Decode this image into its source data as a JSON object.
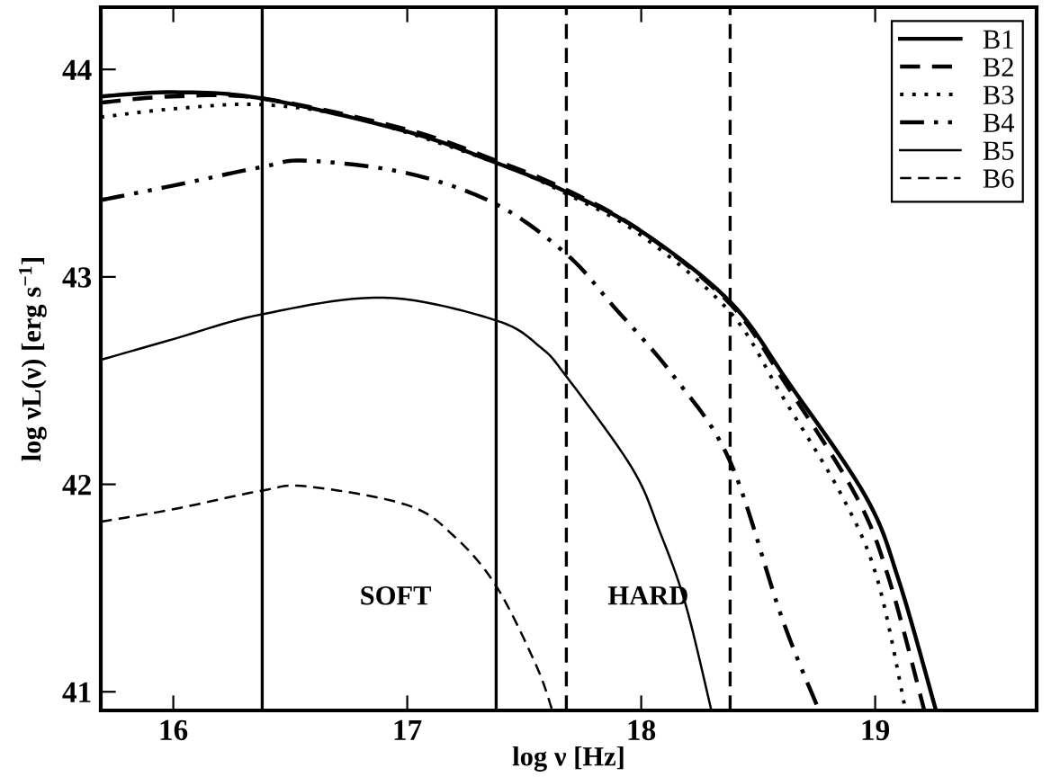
{
  "chart_data": {
    "type": "line",
    "xlabel": "log ν [Hz]",
    "ylabel": "log νL(ν) [erg s$^{−1}$]",
    "xlim": [
      15.69,
      19.69
    ],
    "xticks": [
      16,
      17,
      18,
      19
    ],
    "ylim": [
      40.91,
      44.3
    ],
    "yticks": [
      41,
      42,
      43,
      44
    ],
    "grid": false,
    "legend": "top right",
    "marker": "none",
    "series": [
      {
        "name": "B1",
        "color": "#000000",
        "line_style": "solid",
        "x": [
          15.69,
          16.0,
          16.38,
          17.0,
          17.38,
          17.68,
          18.0,
          18.38,
          18.63,
          18.96,
          19.1,
          19.26
        ],
        "values": [
          43.87,
          43.89,
          43.86,
          43.7,
          43.55,
          43.41,
          43.22,
          42.88,
          42.49,
          41.94,
          41.54,
          40.91
        ]
      },
      {
        "name": "B2",
        "color": "#000000",
        "line_style": "dashed",
        "x": [
          15.69,
          16.0,
          16.38,
          17.0,
          17.38,
          17.68,
          18.0,
          18.38,
          18.62,
          18.92,
          19.06,
          19.21
        ],
        "values": [
          43.84,
          43.87,
          43.86,
          43.71,
          43.56,
          43.42,
          43.22,
          42.87,
          42.48,
          41.94,
          41.54,
          40.91
        ]
      },
      {
        "name": "B3",
        "color": "#000000",
        "line_style": "dotted",
        "x": [
          15.69,
          16.0,
          16.38,
          16.8,
          17.38,
          17.68,
          18.0,
          18.38,
          18.6,
          18.86,
          19.01,
          19.13
        ],
        "values": [
          43.77,
          43.81,
          43.83,
          43.76,
          43.55,
          43.4,
          43.2,
          42.83,
          42.43,
          41.94,
          41.54,
          40.91
        ]
      },
      {
        "name": "B4",
        "color": "#000000",
        "line_style": "dashdot",
        "x": [
          15.69,
          16.0,
          16.38,
          16.57,
          17.0,
          17.38,
          17.68,
          17.88,
          18.14,
          18.38,
          18.6,
          18.76
        ],
        "values": [
          43.37,
          43.44,
          43.53,
          43.56,
          43.5,
          43.35,
          43.11,
          42.86,
          42.52,
          42.11,
          41.36,
          40.91
        ]
      },
      {
        "name": "B5",
        "color": "#000000",
        "line_style": "solid",
        "x": [
          15.69,
          16.0,
          16.38,
          16.9,
          17.38,
          17.57,
          17.68,
          17.96,
          18.08,
          18.19,
          18.3
        ],
        "values": [
          42.6,
          42.7,
          42.82,
          42.9,
          42.79,
          42.66,
          42.52,
          42.08,
          41.77,
          41.42,
          40.91
        ]
      },
      {
        "name": "B6",
        "color": "#000000",
        "line_style": "dashed",
        "x": [
          15.69,
          16.0,
          16.38,
          16.57,
          17.0,
          17.2,
          17.38,
          17.55,
          17.62
        ],
        "values": [
          41.82,
          41.88,
          41.97,
          41.99,
          41.9,
          41.75,
          41.51,
          41.13,
          40.91
        ]
      }
    ],
    "ref_lines": [
      {
        "axis": "x",
        "value": 16.38,
        "color": "#000000",
        "line_style": "solid"
      },
      {
        "axis": "x",
        "value": 17.38,
        "color": "#000000",
        "line_style": "solid"
      },
      {
        "axis": "x",
        "value": 17.68,
        "color": "#000000",
        "line_style": "dashed"
      },
      {
        "axis": "x",
        "value": 18.38,
        "color": "#000000",
        "line_style": "dashed"
      }
    ],
    "annotations": [
      "SOFT",
      "HARD"
    ]
  }
}
